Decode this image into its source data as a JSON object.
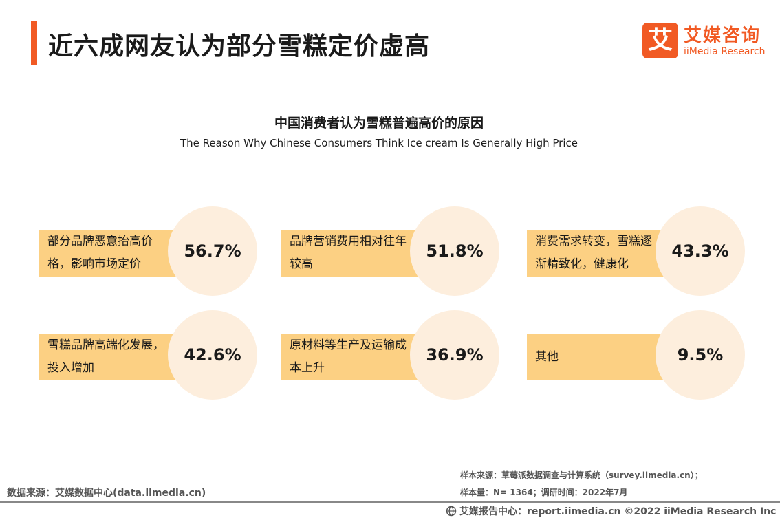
{
  "header": {
    "title": "近六成网友认为部分雪糕定价虚高",
    "accent_color": "#f15a24"
  },
  "logo": {
    "mark": "艾",
    "cn": "艾媒咨询",
    "en": "iiMedia Research"
  },
  "chart_data": {
    "type": "table",
    "title": "中国消费者认为雪糕普遍高价的原因",
    "subtitle": "The Reason Why Chinese Consumers Think Ice cream Is Generally High Price",
    "unit": "%",
    "colors": {
      "label_bar": "#fcd083",
      "value_circle": "#fdeedd"
    },
    "categories": [
      "部分品牌恶意抬高价格，影响市场定价",
      "品牌营销费用相对往年较高",
      "消费需求转变，雪糕逐渐精致化，健康化",
      "雪糕品牌高端化发展，投入增加",
      "原材料等生产及运输成本上升",
      "其他"
    ],
    "values": [
      56.7,
      51.8,
      43.3,
      42.6,
      36.9,
      9.5
    ],
    "items": [
      {
        "label": "部分品牌恶意抬高价格，影响市场定价",
        "value": 56.7,
        "display": "56.7%"
      },
      {
        "label": "品牌营销费用相对往年较高",
        "value": 51.8,
        "display": "51.8%"
      },
      {
        "label": "消费需求转变，雪糕逐渐精致化，健康化",
        "value": 43.3,
        "display": "43.3%"
      },
      {
        "label": "雪糕品牌高端化发展，投入增加",
        "value": 42.6,
        "display": "42.6%"
      },
      {
        "label": "原材料等生产及运输成本上升",
        "value": 36.9,
        "display": "36.9%"
      },
      {
        "label": "其他",
        "value": 9.5,
        "display": "9.5%"
      }
    ]
  },
  "footer": {
    "data_source": "数据来源：艾媒数据中心(data.iimedia.cn)",
    "sample_source": "样本来源：草莓派数据调查与计算系统（survey.iimedia.cn）；",
    "sample_size": "样本量：N= 1364；调研时间：2022年7月",
    "report_center": "艾媒报告中心：report.iimedia.cn  ©2022  iiMedia Research  Inc"
  }
}
